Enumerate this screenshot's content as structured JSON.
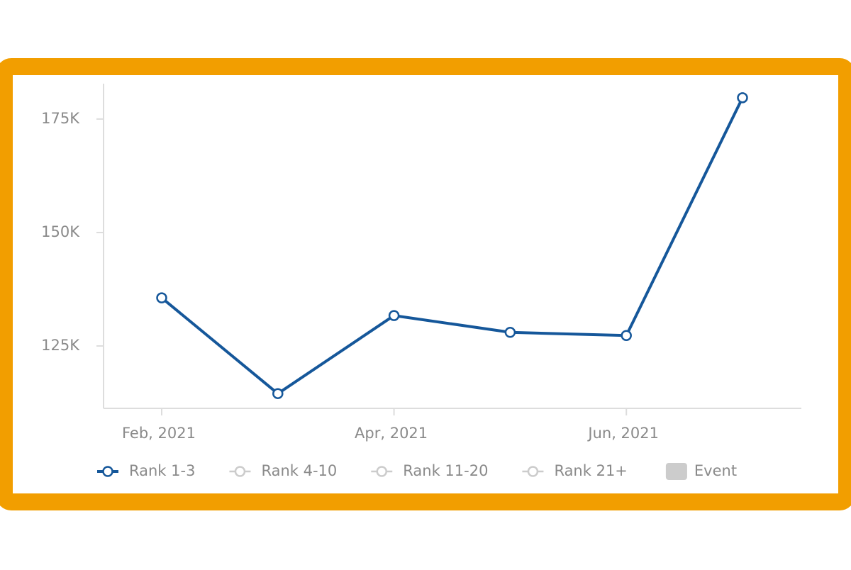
{
  "chart_data": {
    "type": "line",
    "categories": [
      "Feb, 2021",
      null,
      "Apr, 2021",
      null,
      "Jun, 2021",
      null
    ],
    "series": [
      {
        "name": "Rank 1-3",
        "color": "#15579a",
        "visible": true,
        "values": [
          135600,
          114500,
          131700,
          128000,
          127300,
          179700
        ]
      },
      {
        "name": "Rank 4-10",
        "color": "#cccccc",
        "visible": false,
        "values": [
          null,
          null,
          null,
          null,
          null,
          null
        ]
      },
      {
        "name": "Rank 11-20",
        "color": "#cccccc",
        "visible": false,
        "values": [
          null,
          null,
          null,
          null,
          null,
          null
        ]
      },
      {
        "name": "Rank 21+",
        "color": "#cccccc",
        "visible": false,
        "values": [
          null,
          null,
          null,
          null,
          null,
          null
        ]
      }
    ],
    "events": {
      "name": "Event",
      "color": "#cccccc",
      "visible": false
    },
    "ylim": [
      111250,
      182800
    ],
    "yticks": [
      {
        "value": 125000,
        "label": "125K"
      },
      {
        "value": 150000,
        "label": "150K"
      },
      {
        "value": 175000,
        "label": "175K"
      }
    ],
    "grid": false
  }
}
